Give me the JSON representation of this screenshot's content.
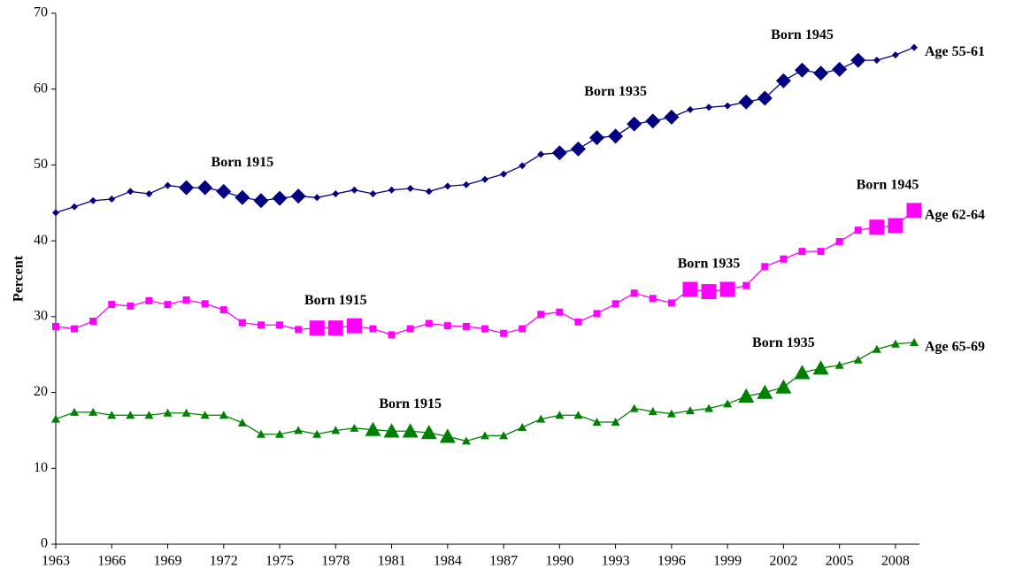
{
  "chart_data": {
    "type": "line",
    "y_label": "Percent",
    "x": [
      1963,
      1964,
      1965,
      1966,
      1967,
      1968,
      1969,
      1970,
      1971,
      1972,
      1973,
      1974,
      1975,
      1976,
      1977,
      1978,
      1979,
      1980,
      1981,
      1982,
      1983,
      1984,
      1985,
      1986,
      1987,
      1988,
      1989,
      1990,
      1991,
      1992,
      1993,
      1994,
      1995,
      1996,
      1997,
      1998,
      1999,
      2000,
      2001,
      2002,
      2003,
      2004,
      2005,
      2006,
      2007,
      2008,
      2009
    ],
    "xlim": [
      1963,
      2009
    ],
    "xticks": [
      1963,
      1966,
      1969,
      1972,
      1975,
      1978,
      1981,
      1984,
      1987,
      1990,
      1993,
      1996,
      1999,
      2002,
      2005,
      2008
    ],
    "ylim": [
      0,
      70
    ],
    "yticks": [
      0,
      10,
      20,
      30,
      40,
      50,
      60,
      70
    ],
    "series": [
      {
        "name": "Age 55-61",
        "color": "#000080",
        "marker": "diamond",
        "values": [
          43.7,
          44.5,
          45.3,
          45.5,
          46.5,
          46.2,
          47.3,
          47.0,
          47.0,
          46.5,
          45.7,
          45.3,
          45.6,
          45.9,
          45.7,
          46.2,
          46.7,
          46.2,
          46.7,
          46.9,
          46.5,
          47.2,
          47.4,
          48.1,
          48.8,
          49.9,
          51.4,
          51.6,
          52.1,
          53.6,
          53.8,
          55.4,
          55.8,
          56.3,
          57.3,
          57.6,
          57.8,
          58.3,
          58.8,
          61.1,
          62.5,
          62.1,
          62.6,
          63.8,
          63.8,
          64.5,
          65.5
        ],
        "highlights": [
          {
            "label": "Born 1915",
            "years": [
              1970,
              1976
            ]
          },
          {
            "label": "Born 1935",
            "years": [
              1990,
              1996
            ]
          },
          {
            "label": "Born 1945",
            "years": [
              2000,
              2006
            ]
          }
        ]
      },
      {
        "name": "Age 62-64",
        "color": "#FF00FF",
        "marker": "square",
        "values": [
          28.7,
          28.4,
          29.4,
          31.6,
          31.4,
          32.1,
          31.6,
          32.2,
          31.7,
          30.9,
          29.2,
          28.9,
          28.9,
          28.3,
          28.5,
          28.5,
          28.8,
          28.4,
          27.6,
          28.4,
          29.1,
          28.8,
          28.7,
          28.4,
          27.8,
          28.4,
          30.3,
          30.6,
          29.3,
          30.4,
          31.7,
          33.1,
          32.4,
          31.8,
          33.6,
          33.3,
          33.6,
          34.1,
          36.6,
          37.6,
          38.6,
          38.6,
          39.9,
          41.4,
          41.8,
          42.0,
          44.0
        ],
        "highlights": [
          {
            "label": "Born 1915",
            "years": [
              1977,
              1979
            ]
          },
          {
            "label": "Born 1935",
            "years": [
              1997,
              1999
            ]
          },
          {
            "label": "Born 1945",
            "years": [
              2007,
              2009
            ]
          }
        ]
      },
      {
        "name": "Age 65-69",
        "color": "#008000",
        "marker": "triangle",
        "values": [
          16.5,
          17.4,
          17.4,
          17.0,
          17.0,
          17.0,
          17.3,
          17.3,
          17.0,
          17.0,
          16.0,
          14.5,
          14.5,
          15.0,
          14.5,
          15.0,
          15.3,
          15.1,
          14.9,
          14.9,
          14.7,
          14.2,
          13.6,
          14.3,
          14.3,
          15.4,
          16.5,
          17.0,
          17.0,
          16.1,
          16.1,
          17.9,
          17.5,
          17.2,
          17.6,
          17.9,
          18.5,
          19.5,
          20.0,
          20.7,
          22.6,
          23.2,
          23.6,
          24.3,
          25.7,
          26.4,
          26.6
        ],
        "highlights": [
          {
            "label": "Born 1915",
            "years": [
              1980,
              1984
            ]
          },
          {
            "label": "Born 1935",
            "years": [
              2000,
              2004
            ]
          }
        ]
      }
    ]
  }
}
